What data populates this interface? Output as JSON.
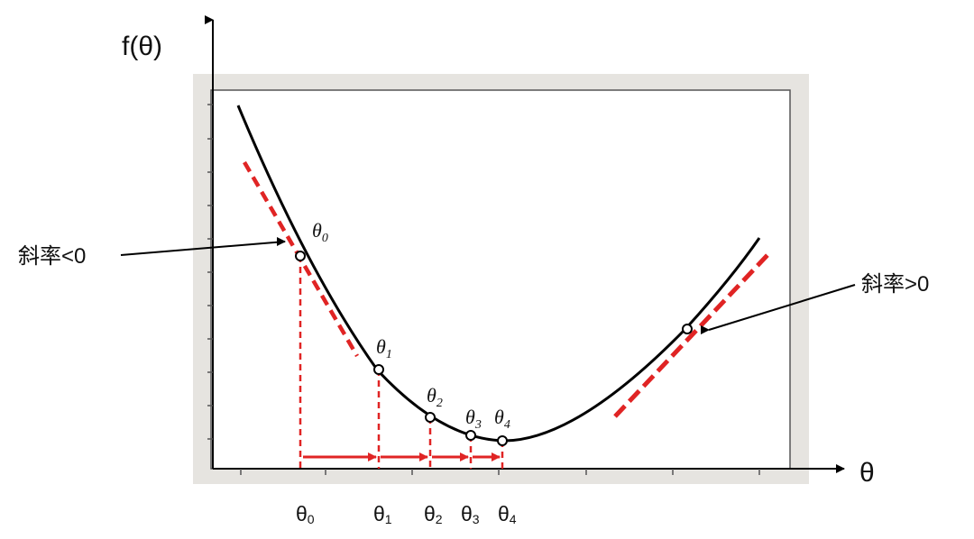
{
  "axes": {
    "y_label": "f(θ)",
    "x_label": "θ"
  },
  "curve_points": [
    {
      "sym": "θ",
      "sub": "0"
    },
    {
      "sym": "θ",
      "sub": "1"
    },
    {
      "sym": "θ",
      "sub": "2"
    },
    {
      "sym": "θ",
      "sub": "3"
    },
    {
      "sym": "θ",
      "sub": "4"
    }
  ],
  "axis_marks": [
    {
      "sym": "θ",
      "sub": "0"
    },
    {
      "sym": "θ",
      "sub": "1"
    },
    {
      "sym": "θ",
      "sub": "2"
    },
    {
      "sym": "θ",
      "sub": "3"
    },
    {
      "sym": "θ",
      "sub": "4"
    }
  ],
  "annotations": {
    "left_slope": "斜率<0",
    "right_slope": "斜率>0"
  },
  "colors": {
    "curve": "#000000",
    "tangent": "#e02424",
    "step_arrow": "#e02424",
    "frame": "#e6e4e0"
  }
}
